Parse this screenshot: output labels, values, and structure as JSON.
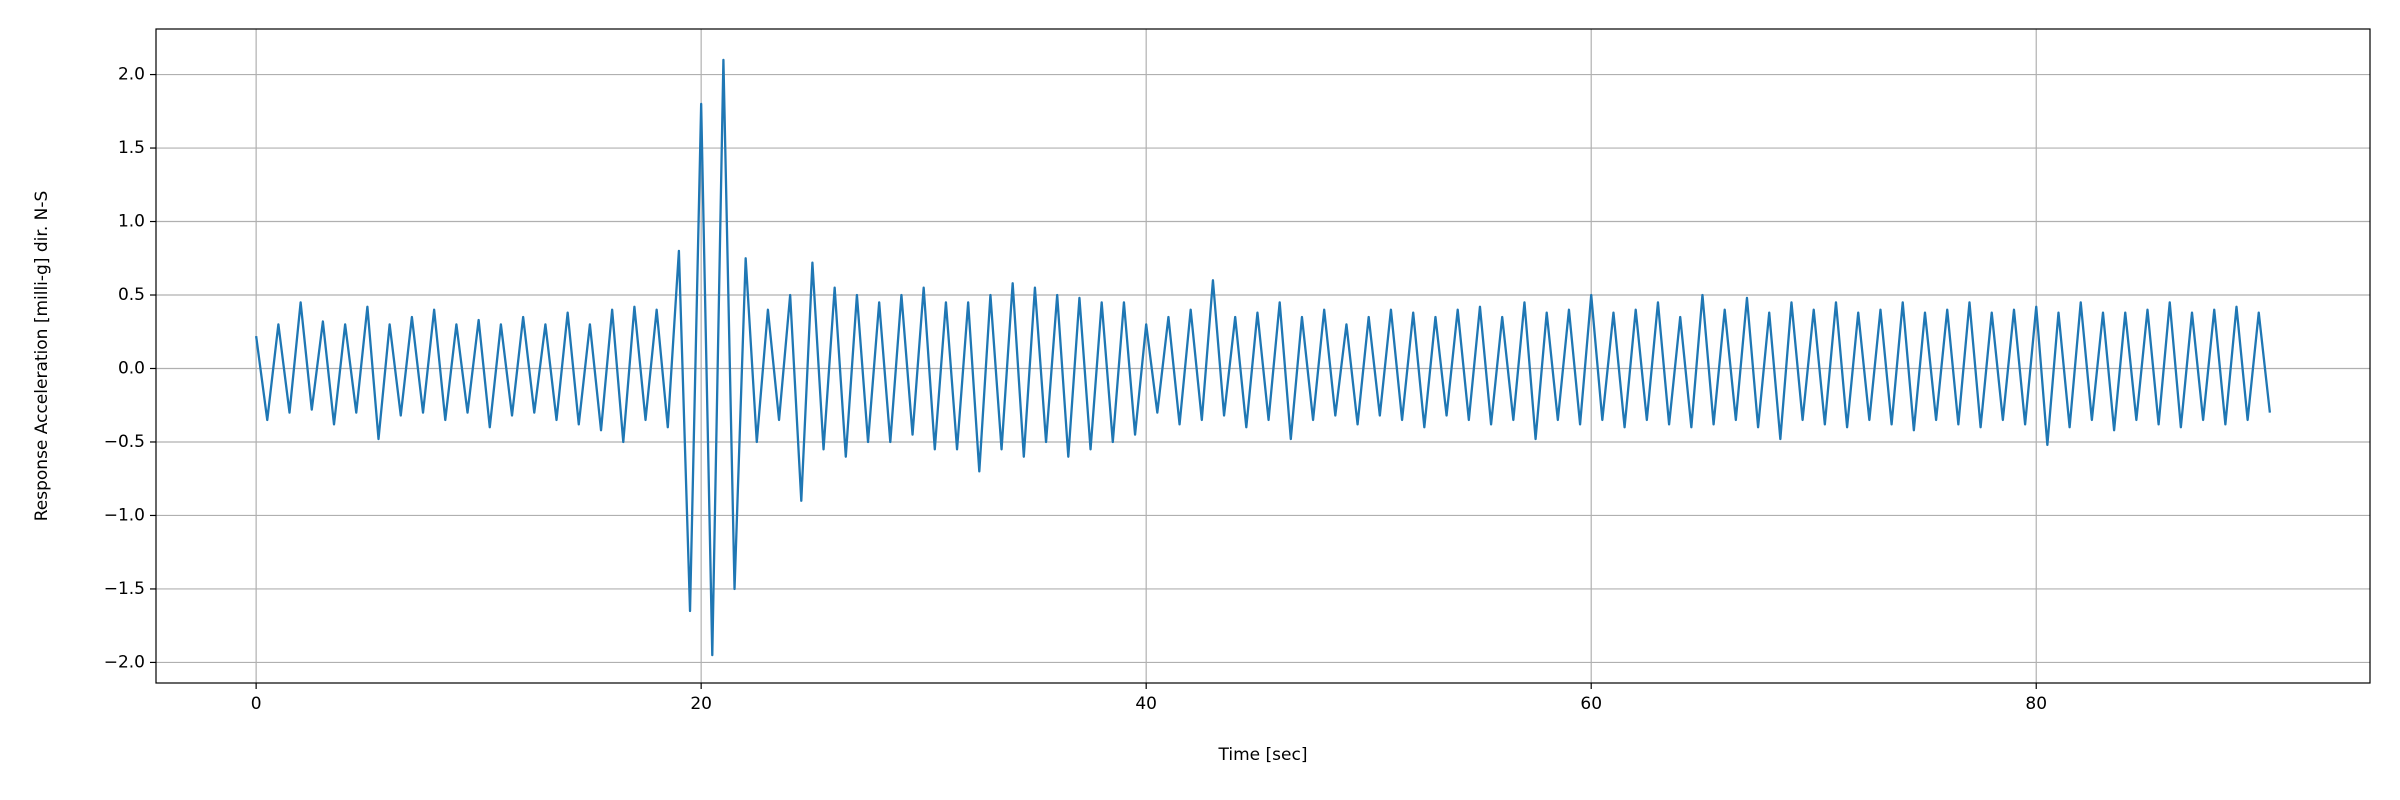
{
  "chart_data": {
    "type": "line",
    "xlabel": "Time [sec]",
    "ylabel": "Response Acceleration [milli-g] dir. N-S",
    "color": "#1f77b4",
    "grid": true,
    "xlim": [
      -4.5,
      95
    ],
    "ylim": [
      -2.14,
      2.31
    ],
    "xticks": [
      0,
      20,
      40,
      60,
      80
    ],
    "yticks": [
      {
        "value": -2.0,
        "label": "−2.0"
      },
      {
        "value": -1.5,
        "label": "−1.5"
      },
      {
        "value": -1.0,
        "label": "−1.0"
      },
      {
        "value": -0.5,
        "label": "−0.5"
      },
      {
        "value": 0.0,
        "label": "0.0"
      },
      {
        "value": 0.5,
        "label": "0.5"
      },
      {
        "value": 1.0,
        "label": "1.0"
      },
      {
        "value": 1.5,
        "label": "1.5"
      },
      {
        "value": 2.0,
        "label": "2.0"
      }
    ],
    "x": [
      0,
      0.5,
      1,
      1.5,
      2,
      2.5,
      3,
      3.5,
      4,
      4.5,
      5,
      5.5,
      6,
      6.5,
      7,
      7.5,
      8,
      8.5,
      9,
      9.5,
      10,
      10.5,
      11,
      11.5,
      12,
      12.5,
      13,
      13.5,
      14,
      14.5,
      15,
      15.5,
      16,
      16.5,
      17,
      17.5,
      18,
      18.5,
      19,
      19.5,
      20,
      20.5,
      21,
      21.5,
      22,
      22.5,
      23,
      23.5,
      24,
      24.5,
      25,
      25.5,
      26,
      26.5,
      27,
      27.5,
      28,
      28.5,
      29,
      29.5,
      30,
      30.5,
      31,
      31.5,
      32,
      32.5,
      33,
      33.5,
      34,
      34.5,
      35,
      35.5,
      36,
      36.5,
      37,
      37.5,
      38,
      38.5,
      39,
      39.5,
      40,
      40.5,
      41,
      41.5,
      42,
      42.5,
      43,
      43.5,
      44,
      44.5,
      45,
      45.5,
      46,
      46.5,
      47,
      47.5,
      48,
      48.5,
      49,
      49.5,
      50,
      50.5,
      51,
      51.5,
      52,
      52.5,
      53,
      53.5,
      54,
      54.5,
      55,
      55.5,
      56,
      56.5,
      57,
      57.5,
      58,
      58.5,
      59,
      59.5,
      60,
      60.5,
      61,
      61.5,
      62,
      62.5,
      63,
      63.5,
      64,
      64.5,
      65,
      65.5,
      66,
      66.5,
      67,
      67.5,
      68,
      68.5,
      69,
      69.5,
      70,
      70.5,
      71,
      71.5,
      72,
      72.5,
      73,
      73.5,
      74,
      74.5,
      75,
      75.5,
      76,
      76.5,
      77,
      77.5,
      78,
      78.5,
      79,
      79.5,
      80,
      80.5,
      81,
      81.5,
      82,
      82.5,
      83,
      83.5,
      84,
      84.5,
      85,
      85.5,
      86,
      86.5,
      87,
      87.5,
      88,
      88.5,
      89,
      89.5,
      90,
      90.5
    ],
    "values": [
      0.22,
      -0.35,
      0.3,
      -0.3,
      0.45,
      -0.28,
      0.32,
      -0.38,
      0.3,
      -0.3,
      0.42,
      -0.48,
      0.3,
      -0.32,
      0.35,
      -0.3,
      0.4,
      -0.35,
      0.3,
      -0.3,
      0.33,
      -0.4,
      0.3,
      -0.32,
      0.35,
      -0.3,
      0.3,
      -0.35,
      0.38,
      -0.38,
      0.3,
      -0.42,
      0.4,
      -0.5,
      0.42,
      -0.35,
      0.4,
      -0.4,
      0.8,
      -1.65,
      1.8,
      -1.95,
      2.1,
      -1.5,
      0.75,
      -0.5,
      0.4,
      -0.35,
      0.5,
      -0.9,
      0.72,
      -0.55,
      0.55,
      -0.6,
      0.5,
      -0.5,
      0.45,
      -0.5,
      0.5,
      -0.45,
      0.55,
      -0.55,
      0.45,
      -0.55,
      0.45,
      -0.7,
      0.5,
      -0.55,
      0.58,
      -0.6,
      0.55,
      -0.5,
      0.5,
      -0.6,
      0.48,
      -0.55,
      0.45,
      -0.5,
      0.45,
      -0.45,
      0.3,
      -0.3,
      0.35,
      -0.38,
      0.4,
      -0.35,
      0.6,
      -0.32,
      0.35,
      -0.4,
      0.38,
      -0.35,
      0.45,
      -0.48,
      0.35,
      -0.35,
      0.4,
      -0.32,
      0.3,
      -0.38,
      0.35,
      -0.32,
      0.4,
      -0.35,
      0.38,
      -0.4,
      0.35,
      -0.32,
      0.4,
      -0.35,
      0.42,
      -0.38,
      0.35,
      -0.35,
      0.45,
      -0.48,
      0.38,
      -0.35,
      0.4,
      -0.38,
      0.5,
      -0.35,
      0.38,
      -0.4,
      0.4,
      -0.35,
      0.45,
      -0.38,
      0.35,
      -0.4,
      0.5,
      -0.38,
      0.4,
      -0.35,
      0.48,
      -0.4,
      0.38,
      -0.48,
      0.45,
      -0.35,
      0.4,
      -0.38,
      0.45,
      -0.4,
      0.38,
      -0.35,
      0.4,
      -0.38,
      0.45,
      -0.42,
      0.38,
      -0.35,
      0.4,
      -0.38,
      0.45,
      -0.4,
      0.38,
      -0.35,
      0.4,
      -0.38,
      0.42,
      -0.52,
      0.38,
      -0.4,
      0.45,
      -0.35,
      0.38,
      -0.42,
      0.38,
      -0.35,
      0.4,
      -0.38,
      0.45,
      -0.4,
      0.38,
      -0.35,
      0.4,
      -0.38,
      0.42,
      -0.35,
      0.38,
      -0.3
    ]
  }
}
